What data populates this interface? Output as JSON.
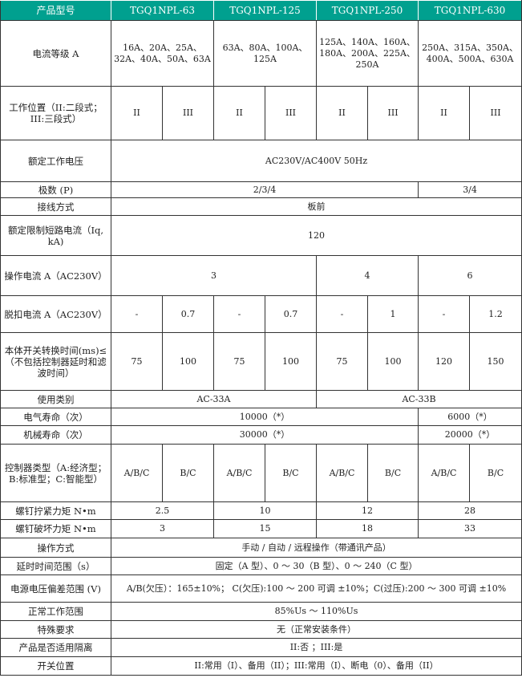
{
  "header_color": "#00a08f",
  "header": [
    "产品型号",
    "TGQ1NPL-63",
    "TGQ1NPL-125",
    "TGQ1NPL-250",
    "TGQ1NPL-630"
  ],
  "rows": [
    {
      "label": "电流等级 A",
      "cells": [
        {
          "t": "16A、20A、25A、32A、40A、50A、63A",
          "span": 2
        },
        {
          "t": "63A、80A、100A、125A",
          "span": 2
        },
        {
          "t": "125A、140A、160A、180A、200A、225A、250A",
          "span": 2
        },
        {
          "t": "250A、315A、350A、400A、500A、630A",
          "span": 2
        }
      ]
    },
    {
      "label": "工作位置（II:二段式；III:三段式）",
      "cells": [
        {
          "t": "II"
        },
        {
          "t": "III"
        },
        {
          "t": "II"
        },
        {
          "t": "III"
        },
        {
          "t": "II"
        },
        {
          "t": "III"
        },
        {
          "t": "II"
        },
        {
          "t": "III"
        }
      ]
    },
    {
      "label": "额定工作电压",
      "cells": [
        {
          "t": "AC230V/AC400V 50Hz",
          "span": 8
        }
      ]
    },
    {
      "label": "极数 (P)",
      "cells": [
        {
          "t": "2/3/4",
          "span": 6
        },
        {
          "t": "3/4",
          "span": 2
        }
      ]
    },
    {
      "label": "接线方式",
      "cells": [
        {
          "t": "板前",
          "span": 8
        }
      ]
    },
    {
      "label": "额定限制短路电流（Iq, kA)",
      "cells": [
        {
          "t": "120",
          "span": 8
        }
      ]
    },
    {
      "label": "操作电流 A（AC230V）",
      "cells": [
        {
          "t": "3",
          "span": 4
        },
        {
          "t": "4",
          "span": 2
        },
        {
          "t": "6",
          "span": 2
        }
      ]
    },
    {
      "label": "脱扣电流 A（AC230V）",
      "cells": [
        {
          "t": "-"
        },
        {
          "t": "0.7"
        },
        {
          "t": "-"
        },
        {
          "t": "0.7"
        },
        {
          "t": "-"
        },
        {
          "t": "1"
        },
        {
          "t": "-"
        },
        {
          "t": "1.2"
        }
      ]
    },
    {
      "label": "本体开关转换时间(ms)≤（不包括控制器延时和滤波时间）",
      "cells": [
        {
          "t": "75"
        },
        {
          "t": "100"
        },
        {
          "t": "75"
        },
        {
          "t": "100"
        },
        {
          "t": "75"
        },
        {
          "t": "100"
        },
        {
          "t": "120"
        },
        {
          "t": "150"
        }
      ]
    },
    {
      "label": "使用类别",
      "cells": [
        {
          "t": "AC-33A",
          "span": 4
        },
        {
          "t": "AC-33B",
          "span": 4
        }
      ]
    },
    {
      "label": "电气寿命（次）",
      "cells": [
        {
          "t": "10000（*）",
          "span": 6
        },
        {
          "t": "6000（*）",
          "span": 2
        }
      ]
    },
    {
      "label": "机械寿命（次）",
      "cells": [
        {
          "t": "30000（*）",
          "span": 6
        },
        {
          "t": "20000（*）",
          "span": 2
        }
      ]
    },
    {
      "label": "控制器类型（A:经济型；B:标准型；C:智能型）",
      "cells": [
        {
          "t": "A/B/C"
        },
        {
          "t": "B/C"
        },
        {
          "t": "A/B/C"
        },
        {
          "t": "B/C"
        },
        {
          "t": "A/B/C"
        },
        {
          "t": "B/C"
        },
        {
          "t": "A/B/C"
        },
        {
          "t": "B/C"
        }
      ]
    },
    {
      "label": "螺钉拧紧力矩 N•m",
      "cells": [
        {
          "t": "2.5",
          "span": 2
        },
        {
          "t": "10",
          "span": 2
        },
        {
          "t": "12",
          "span": 2
        },
        {
          "t": "28",
          "span": 2
        }
      ]
    },
    {
      "label": "螺钉破坏力矩 N•m",
      "cells": [
        {
          "t": "3",
          "span": 2
        },
        {
          "t": "15",
          "span": 2
        },
        {
          "t": "18",
          "span": 2
        },
        {
          "t": "33",
          "span": 2
        }
      ]
    },
    {
      "label": "操作方式",
      "cells": [
        {
          "t": "手动 / 自动 / 远程操作（带通讯产品）",
          "span": 8
        }
      ]
    },
    {
      "label": "延时时间范围（s）",
      "cells": [
        {
          "t": "固定（A 型）、0 ～ 30（B 型）、0 ～ 240（C 型）",
          "span": 8
        }
      ]
    },
    {
      "label": "电源电压偏差范围 (V)",
      "cells": [
        {
          "t": "A/B(欠压）：165±10%； C(欠压):100 ～ 200 可调 ±10%；C(过压):200 ～ 300 可调 ±10%",
          "span": 8
        }
      ]
    },
    {
      "label": "正常工作范围",
      "cells": [
        {
          "t": "85%Us ～ 110%Us",
          "span": 8
        }
      ]
    },
    {
      "label": "特殊要求",
      "cells": [
        {
          "t": "无（正常安装条件）",
          "span": 8
        }
      ]
    },
    {
      "label": "产品是否适用隔离",
      "cells": [
        {
          "t": "II:否 ；III:是",
          "span": 8
        }
      ]
    },
    {
      "label": "开关位置",
      "cells": [
        {
          "t": "II:常用（I）、备用（II）；III:常用（I）、断电（0）、备用（II）",
          "span": 8
        }
      ]
    }
  ]
}
